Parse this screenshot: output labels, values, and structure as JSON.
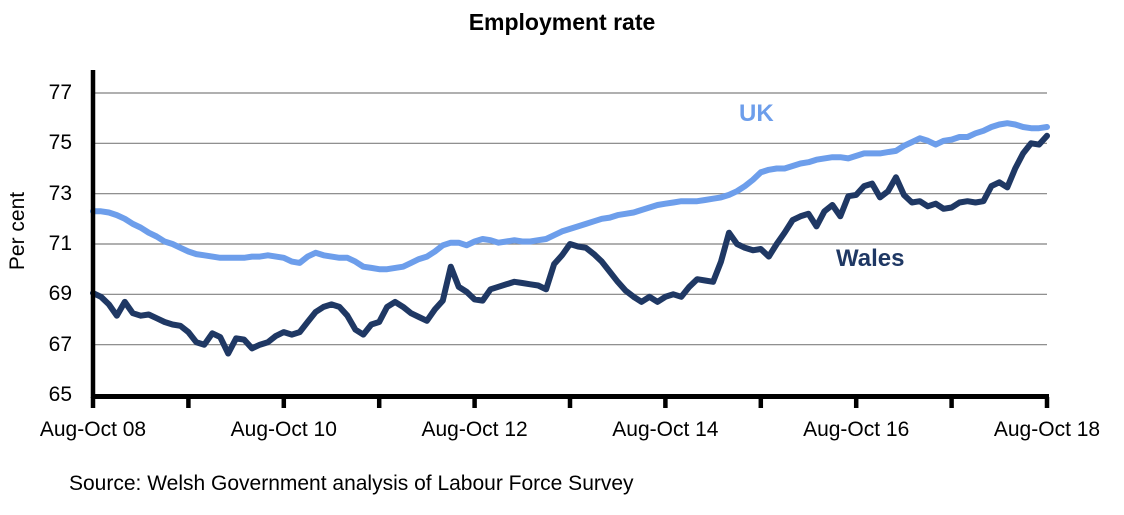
{
  "figure": {
    "title": "Employment rate",
    "y_axis_title": "Per cent",
    "source_note": "Source: Welsh Government analysis of Labour Force Survey"
  },
  "colors": {
    "uk_line": "#6D9EEB",
    "wales_line": "#1F3864",
    "gridline": "#808080",
    "axis": "#000000",
    "text": "#000000",
    "background": "#FFFFFF"
  },
  "chart_data": {
    "type": "line",
    "title": "Employment rate",
    "ylabel": "Per cent",
    "xlabel": "",
    "x_unit": "rolling 3-month periods, monthly, Aug-Oct 2008 to Aug-Oct 2018",
    "n_points": 121,
    "x_tick_labels": [
      "Aug-Oct 08",
      "Aug-Oct 10",
      "Aug-Oct 12",
      "Aug-Oct 14",
      "Aug-Oct 16",
      "Aug-Oct 18"
    ],
    "x_label_tick_indices": [
      0,
      24,
      48,
      72,
      96,
      120
    ],
    "x_minor_tick_interval": 12,
    "ylim": [
      65,
      77
    ],
    "yticks": [
      65,
      67,
      69,
      71,
      73,
      75,
      77
    ],
    "grid": "horizontal-gray",
    "legend": "inline-series-labels",
    "series": [
      {
        "name": "UK",
        "color": "#6D9EEB",
        "values": [
          72.3,
          72.3,
          72.25,
          72.15,
          72.0,
          71.8,
          71.65,
          71.45,
          71.3,
          71.1,
          71.0,
          70.85,
          70.7,
          70.6,
          70.55,
          70.5,
          70.45,
          70.45,
          70.45,
          70.45,
          70.5,
          70.5,
          70.55,
          70.5,
          70.45,
          70.3,
          70.25,
          70.5,
          70.65,
          70.55,
          70.5,
          70.45,
          70.45,
          70.3,
          70.1,
          70.05,
          70.0,
          70.0,
          70.05,
          70.1,
          70.25,
          70.4,
          70.5,
          70.7,
          70.95,
          71.05,
          71.05,
          70.95,
          71.1,
          71.2,
          71.15,
          71.05,
          71.1,
          71.15,
          71.1,
          71.1,
          71.15,
          71.2,
          71.35,
          71.5,
          71.6,
          71.7,
          71.8,
          71.9,
          72.0,
          72.05,
          72.15,
          72.2,
          72.25,
          72.35,
          72.45,
          72.55,
          72.6,
          72.65,
          72.7,
          72.7,
          72.7,
          72.75,
          72.8,
          72.85,
          72.95,
          73.1,
          73.3,
          73.55,
          73.85,
          73.95,
          74.0,
          74.0,
          74.1,
          74.2,
          74.25,
          74.35,
          74.4,
          74.45,
          74.45,
          74.4,
          74.5,
          74.6,
          74.6,
          74.6,
          74.65,
          74.7,
          74.9,
          75.05,
          75.2,
          75.1,
          74.95,
          75.1,
          75.15,
          75.25,
          75.25,
          75.4,
          75.5,
          75.65,
          75.75,
          75.8,
          75.75,
          75.65,
          75.6,
          75.6,
          75.65
        ]
      },
      {
        "name": "Wales",
        "color": "#1F3864",
        "values": [
          69.05,
          68.9,
          68.6,
          68.15,
          68.7,
          68.25,
          68.15,
          68.2,
          68.05,
          67.9,
          67.8,
          67.75,
          67.5,
          67.1,
          67.0,
          67.45,
          67.3,
          66.65,
          67.25,
          67.2,
          66.85,
          67.0,
          67.1,
          67.35,
          67.5,
          67.4,
          67.5,
          67.9,
          68.3,
          68.5,
          68.6,
          68.5,
          68.15,
          67.6,
          67.4,
          67.8,
          67.9,
          68.5,
          68.7,
          68.5,
          68.25,
          68.1,
          67.95,
          68.4,
          68.75,
          70.1,
          69.3,
          69.1,
          68.8,
          68.75,
          69.2,
          69.3,
          69.4,
          69.5,
          69.45,
          69.4,
          69.35,
          69.2,
          70.2,
          70.55,
          71.0,
          70.9,
          70.85,
          70.6,
          70.3,
          69.9,
          69.5,
          69.15,
          68.9,
          68.7,
          68.9,
          68.7,
          68.9,
          69.0,
          68.9,
          69.3,
          69.6,
          69.55,
          69.5,
          70.3,
          71.45,
          71.0,
          70.85,
          70.75,
          70.8,
          70.5,
          71.0,
          71.45,
          71.95,
          72.1,
          72.2,
          71.7,
          72.3,
          72.55,
          72.1,
          72.9,
          72.95,
          73.3,
          73.4,
          72.85,
          73.1,
          73.65,
          72.95,
          72.65,
          72.7,
          72.5,
          72.6,
          72.4,
          72.45,
          72.65,
          72.7,
          72.65,
          72.7,
          73.3,
          73.45,
          73.25,
          74.0,
          74.6,
          75.0,
          74.95,
          75.3
        ]
      }
    ]
  }
}
